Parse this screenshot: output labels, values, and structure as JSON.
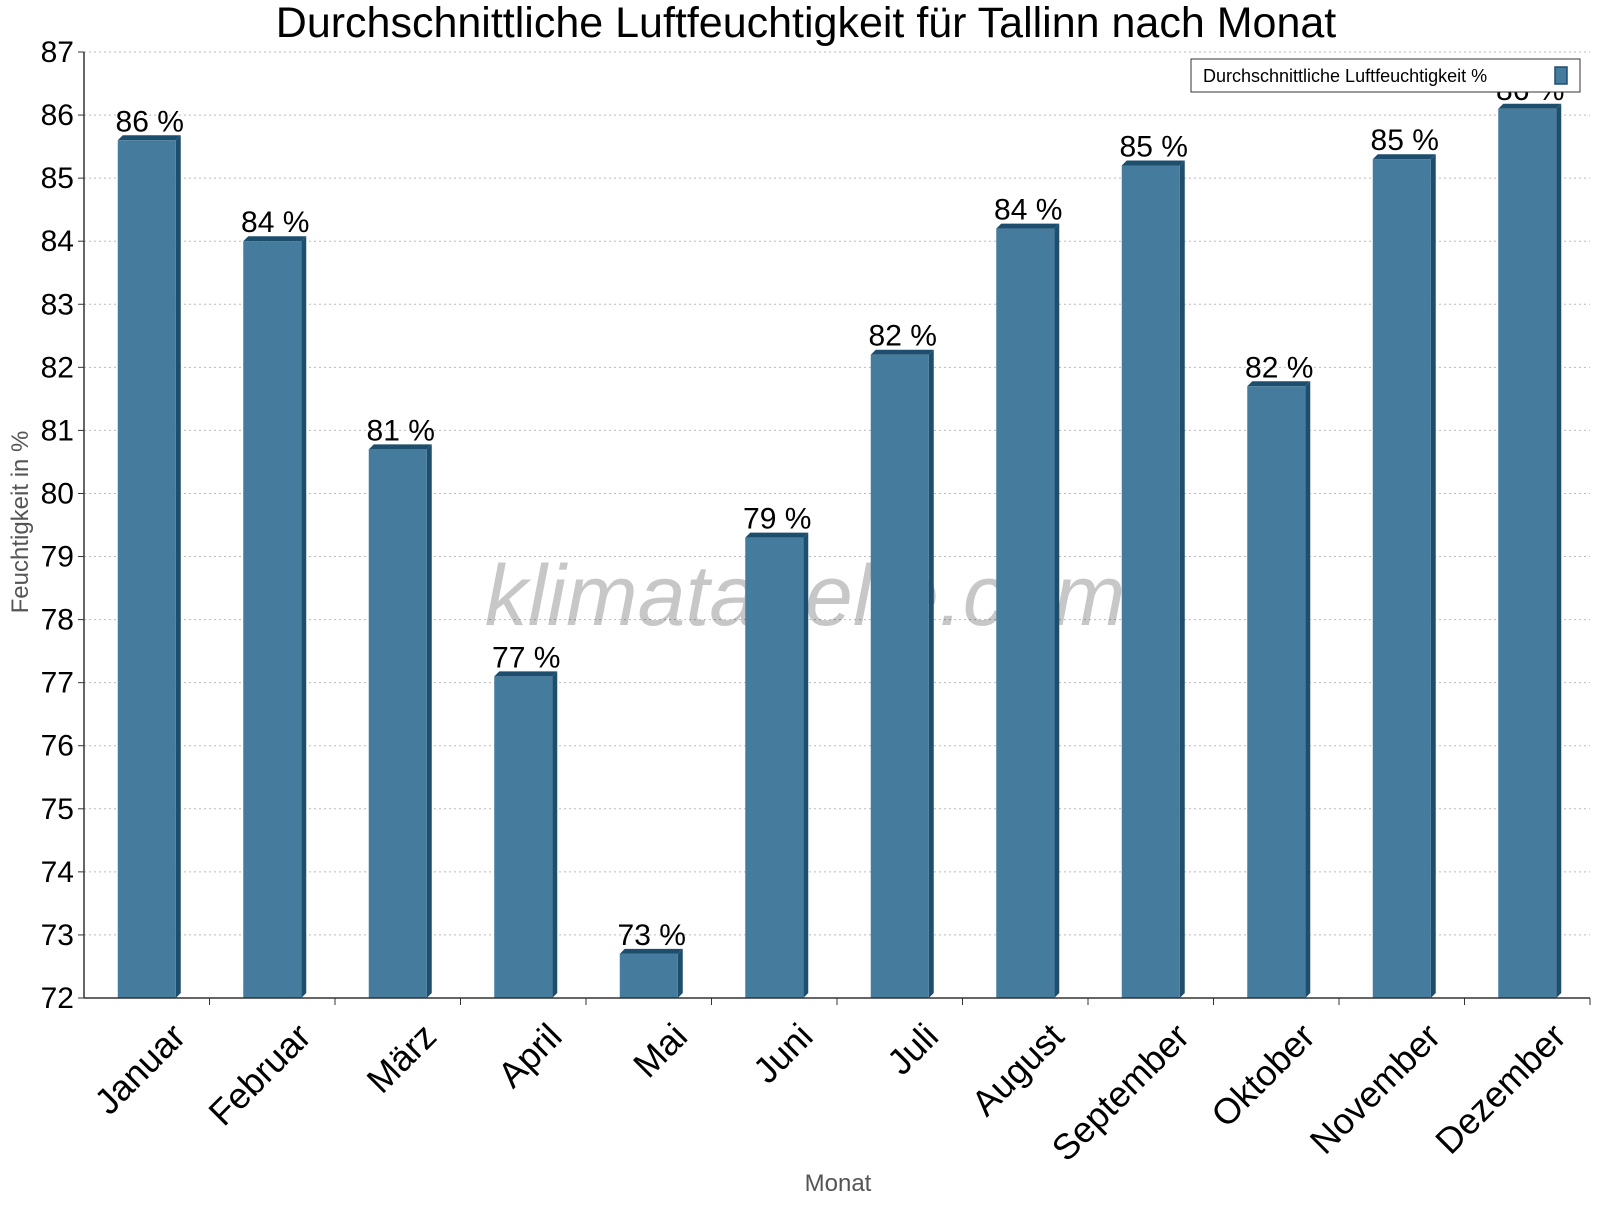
{
  "chart_data": {
    "type": "bar",
    "title": "Durchschnittliche Luftfeuchtigkeit für Tallinn nach Monat",
    "xlabel": "Monat",
    "ylabel": "Feuchtigkeit in %",
    "ylim": [
      72,
      87
    ],
    "yticks": [
      "72",
      "73",
      "74",
      "75",
      "76",
      "77",
      "78",
      "79",
      "80",
      "81",
      "82",
      "83",
      "84",
      "85",
      "86",
      "87"
    ],
    "grid": true,
    "legend_position": "top-right",
    "categories": [
      "Januar",
      "Februar",
      "März",
      "April",
      "Mai",
      "Juni",
      "Juli",
      "August",
      "September",
      "Oktober",
      "November",
      "Dezember"
    ],
    "series": [
      {
        "name": "Durchschnittliche Luftfeuchtigkeit %",
        "values": [
          85.6,
          84.0,
          80.7,
          77.1,
          72.7,
          79.3,
          82.2,
          84.2,
          85.2,
          81.7,
          85.3,
          86.1
        ],
        "labels": [
          "86 %",
          "84 %",
          "81 %",
          "77 %",
          "73 %",
          "79 %",
          "82 %",
          "84 %",
          "85 %",
          "82 %",
          "85 %",
          "86 %"
        ],
        "color": "#457b9d",
        "side_color": "#1d4e6e"
      }
    ],
    "watermark": "klimatabelle.com"
  }
}
